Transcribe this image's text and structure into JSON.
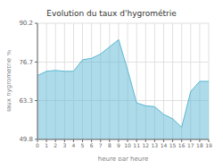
{
  "chart_data": {
    "type": "area",
    "title": "Evolution du taux d'hygrométrie",
    "xlabel": "heure par heure",
    "ylabel": "Taux hygrométrie %",
    "x": [
      0,
      1,
      2,
      3,
      4,
      5,
      6,
      7,
      8,
      9,
      10,
      11,
      12,
      13,
      14,
      15,
      16,
      17,
      18,
      19
    ],
    "values": [
      72.0,
      73.5,
      73.8,
      73.5,
      73.5,
      77.5,
      78.0,
      79.5,
      82.0,
      84.5,
      74.0,
      62.5,
      61.5,
      61.2,
      58.5,
      57.0,
      54.0,
      66.5,
      70.0,
      70.0
    ],
    "color": "#5bb8d4",
    "xlim": [
      0,
      19
    ],
    "xticks": [
      0,
      1,
      2,
      3,
      4,
      5,
      6,
      7,
      8,
      9,
      10,
      11,
      12,
      13,
      14,
      15,
      16,
      17,
      18,
      19
    ],
    "ylim": [
      49.8,
      90.2
    ],
    "yticks": [
      49.8,
      63.3,
      76.7,
      90.2
    ],
    "grid": true
  }
}
